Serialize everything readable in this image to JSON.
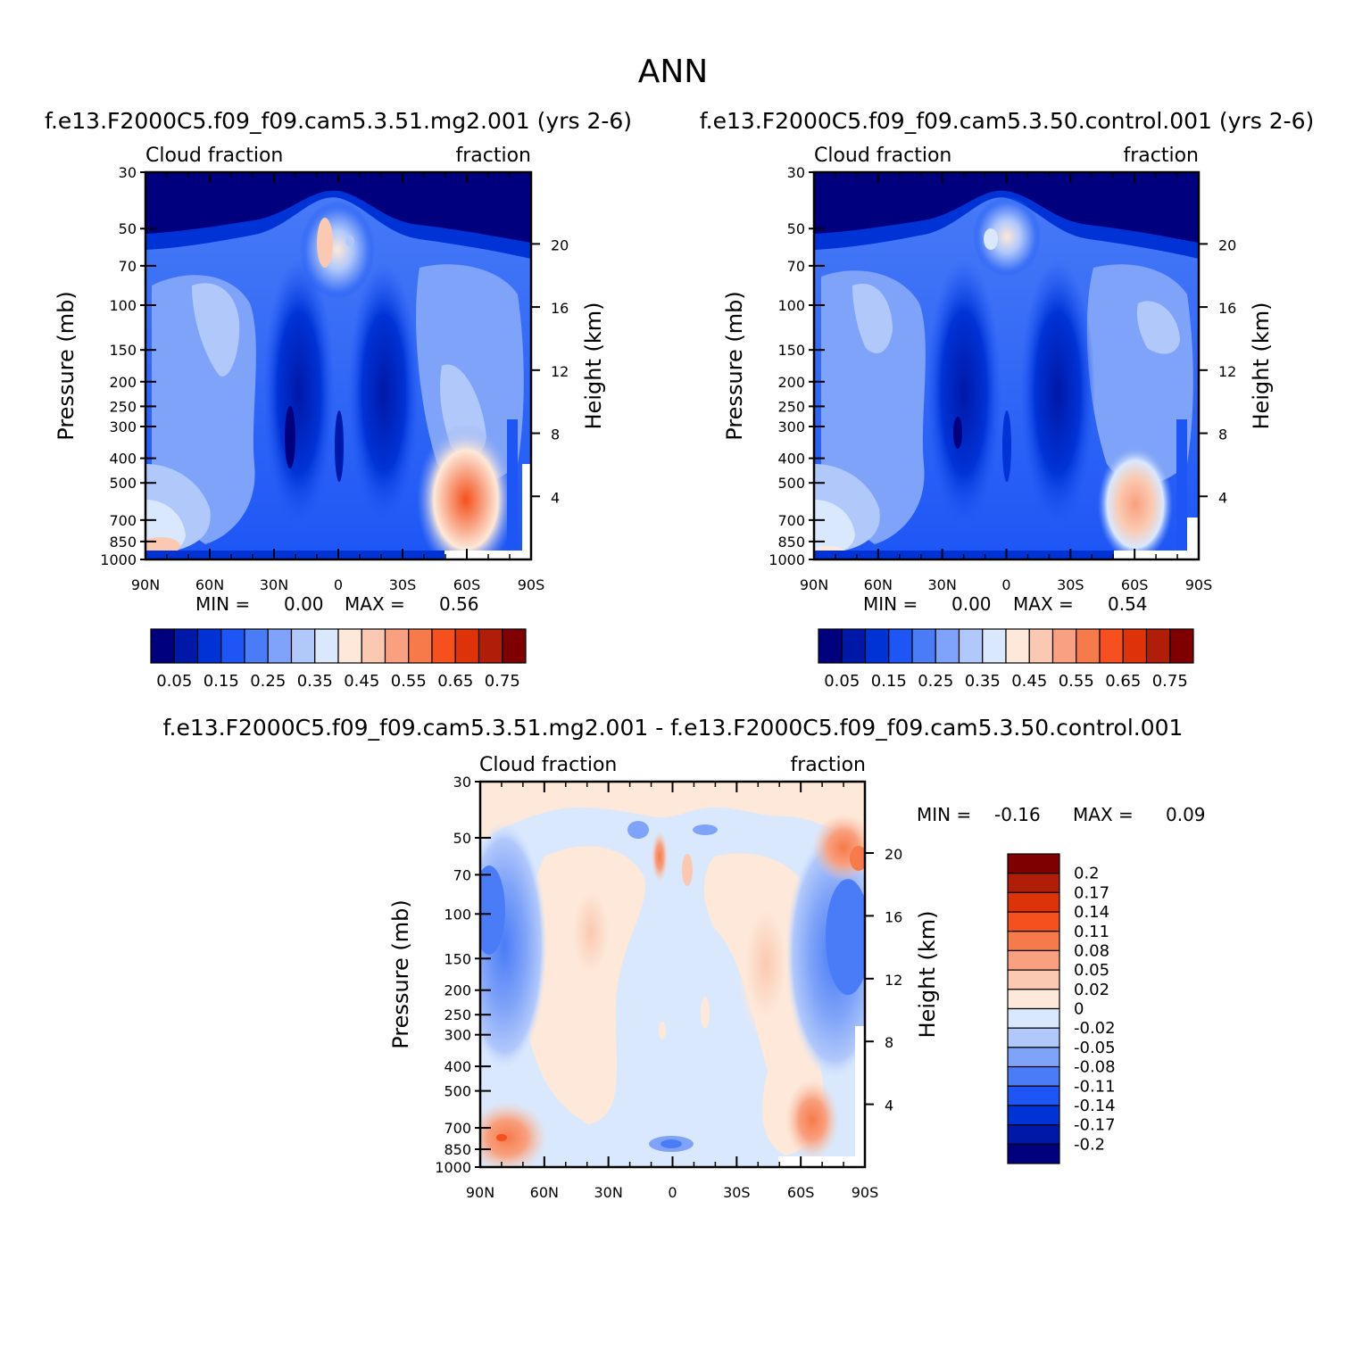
{
  "figure": {
    "title": "ANN"
  },
  "colors": {
    "abs_scale": [
      "#00007f",
      "#0018a8",
      "#0033d6",
      "#1d56f5",
      "#4a7cf7",
      "#7fa3f8",
      "#b1c8fb",
      "#d9e8fd",
      "#fde8d9",
      "#fbc9b1",
      "#f8a07f",
      "#f77a4a",
      "#f5501d",
      "#de3208",
      "#b01e0a",
      "#7f0000"
    ],
    "diff_scale": [
      "#00007f",
      "#0018a8",
      "#0033d6",
      "#1d56f5",
      "#4a7cf7",
      "#7fa3f8",
      "#b1c8fb",
      "#d9e8fd",
      "#fde8d9",
      "#fbc9b1",
      "#f8a07f",
      "#f77a4a",
      "#f5501d",
      "#de3208",
      "#b01e0a",
      "#7f0000"
    ]
  },
  "chart_data": [
    {
      "id": "test",
      "type": "heatmap",
      "title": "f.e13.F2000C5.f09_f09.cam5.3.51.mg2.001  (yrs 2-6)",
      "left_label": "Cloud fraction",
      "right_label": "fraction",
      "ylabel": "Pressure (mb)",
      "y2label": "Height (km)",
      "x_ticks": [
        "90N",
        "60N",
        "30N",
        "0",
        "30S",
        "60S",
        "90S"
      ],
      "y_ticks": [
        "30",
        "50",
        "70",
        "100",
        "150",
        "200",
        "250",
        "300",
        "400",
        "500",
        "700",
        "850",
        "1000"
      ],
      "y2_ticks": [
        "20",
        "16",
        "12",
        "8",
        "4"
      ],
      "min_label": "MIN =",
      "min_value": "0.00",
      "max_label": "MAX =",
      "max_value": "0.56",
      "colorbar_labels": [
        "0.05",
        "0.15",
        "0.25",
        "0.35",
        "0.45",
        "0.55",
        "0.65",
        "0.75"
      ]
    },
    {
      "id": "control",
      "type": "heatmap",
      "title": "f.e13.F2000C5.f09_f09.cam5.3.50.control.001  (yrs 2-6)",
      "left_label": "Cloud fraction",
      "right_label": "fraction",
      "ylabel": "Pressure (mb)",
      "y2label": "Height (km)",
      "x_ticks": [
        "90N",
        "60N",
        "30N",
        "0",
        "30S",
        "60S",
        "90S"
      ],
      "y_ticks": [
        "30",
        "50",
        "70",
        "100",
        "150",
        "200",
        "250",
        "300",
        "400",
        "500",
        "700",
        "850",
        "1000"
      ],
      "y2_ticks": [
        "20",
        "16",
        "12",
        "8",
        "4"
      ],
      "min_label": "MIN =",
      "min_value": "0.00",
      "max_label": "MAX =",
      "max_value": "0.54",
      "colorbar_labels": [
        "0.05",
        "0.15",
        "0.25",
        "0.35",
        "0.45",
        "0.55",
        "0.65",
        "0.75"
      ]
    },
    {
      "id": "diff",
      "type": "heatmap",
      "title": "f.e13.F2000C5.f09_f09.cam5.3.51.mg2.001 - f.e13.F2000C5.f09_f09.cam5.3.50.control.001",
      "left_label": "Cloud fraction",
      "right_label": "fraction",
      "ylabel": "Pressure (mb)",
      "y2label": "Height (km)",
      "x_ticks": [
        "90N",
        "60N",
        "30N",
        "0",
        "30S",
        "60S",
        "90S"
      ],
      "y_ticks": [
        "30",
        "50",
        "70",
        "100",
        "150",
        "200",
        "250",
        "300",
        "400",
        "500",
        "700",
        "850",
        "1000"
      ],
      "y2_ticks": [
        "20",
        "16",
        "12",
        "8",
        "4"
      ],
      "min_label": "MIN =",
      "min_value": "-0.16",
      "max_label": "MAX =",
      "max_value": "0.09",
      "colorbar_labels": [
        "0.2",
        "0.17",
        "0.14",
        "0.11",
        "0.08",
        "0.05",
        "0.02",
        "0",
        "-0.02",
        "-0.05",
        "-0.08",
        "-0.11",
        "-0.14",
        "-0.17",
        "-0.2"
      ]
    }
  ]
}
